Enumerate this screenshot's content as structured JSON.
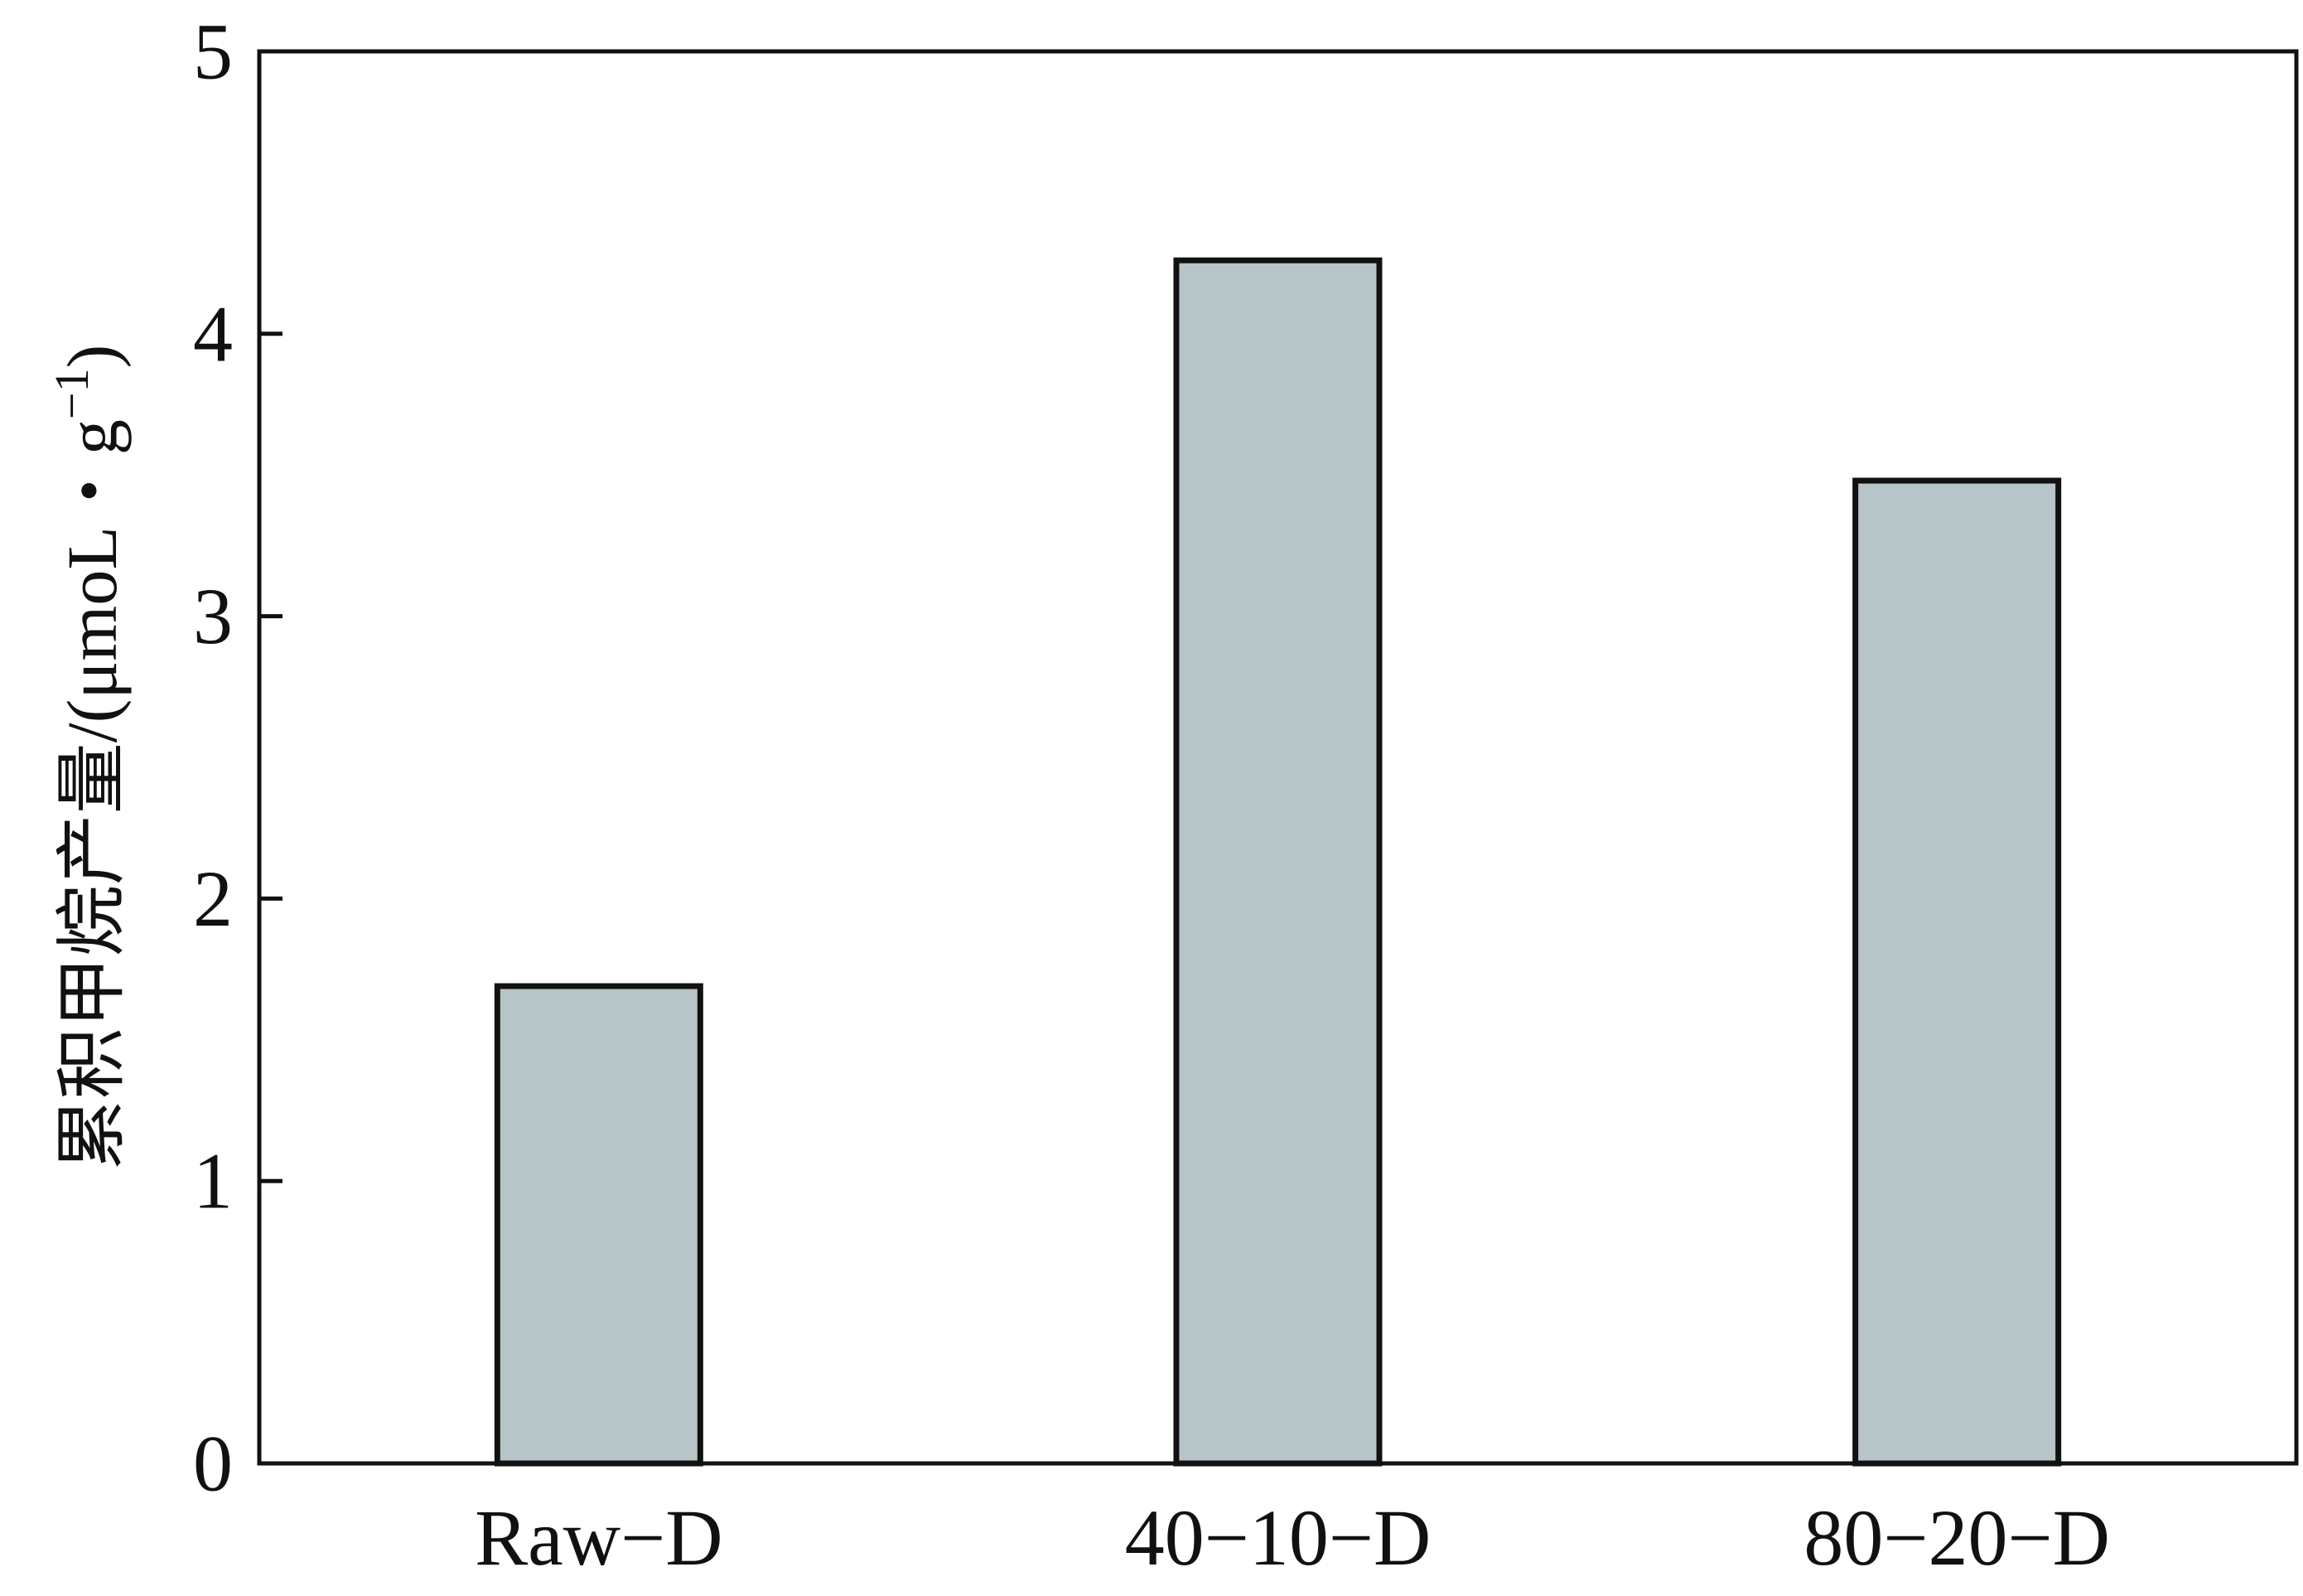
{
  "chart_data": {
    "type": "bar",
    "categories": [
      "Raw−D",
      "40−10−D",
      "80−20−D"
    ],
    "values": [
      1.69,
      4.26,
      3.48
    ],
    "title": "",
    "xlabel": "",
    "ylabel_main": "累积甲烷产量/(μmoL・g",
    "ylabel_sup": "−1",
    "ylabel_end": ")",
    "ylim": [
      0,
      5
    ],
    "yticks": [
      0,
      1,
      2,
      3,
      4,
      5
    ],
    "grid": false,
    "legend": "none",
    "colors": {
      "bar_fill": "#b7c5c8",
      "bar_stroke": "#111111",
      "axis": "#111111"
    }
  }
}
